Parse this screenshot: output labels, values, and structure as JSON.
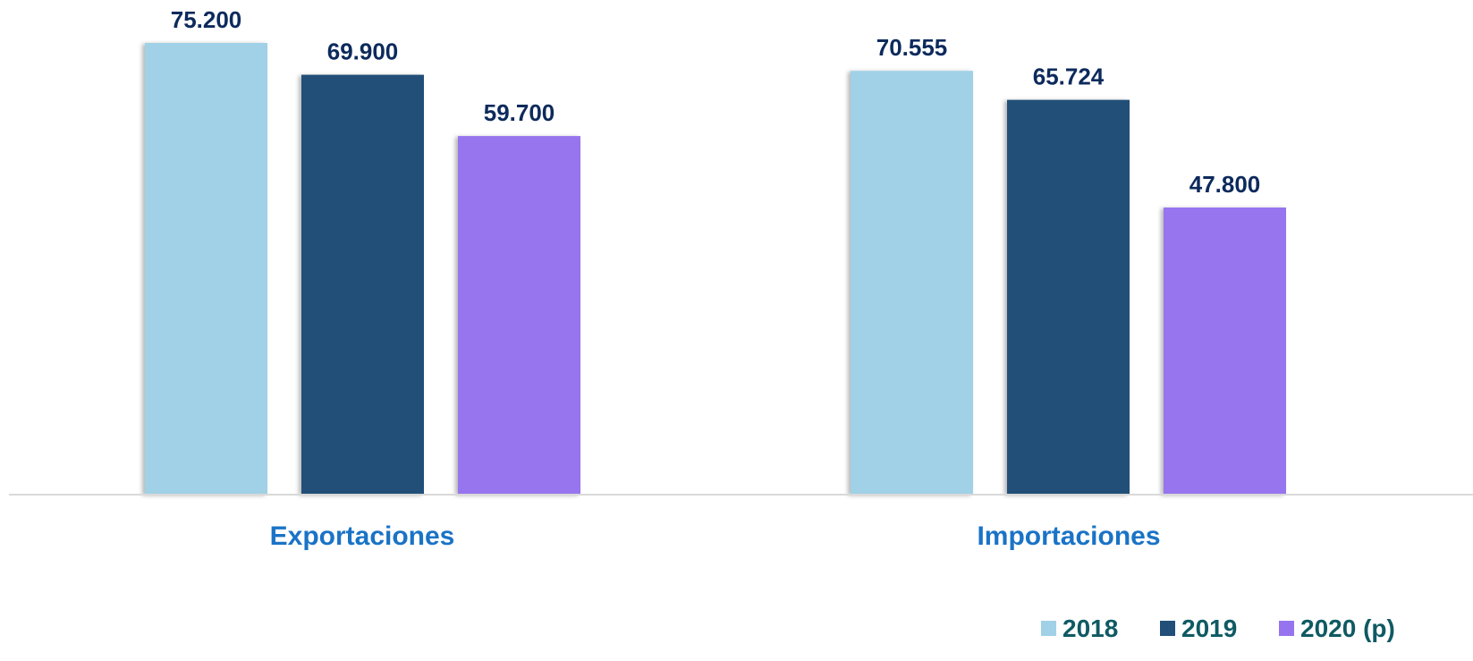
{
  "chart_data": {
    "type": "bar",
    "title": "",
    "xlabel": "",
    "ylabel": "",
    "categories": [
      "Exportaciones",
      "Importaciones"
    ],
    "series": [
      {
        "name": "2018",
        "values": [
          75200,
          70555
        ],
        "labels": [
          "75.200",
          "70.555"
        ],
        "color": "#a1d1e6"
      },
      {
        "name": "2019",
        "values": [
          69900,
          65724
        ],
        "labels": [
          "69.900",
          "65.724"
        ],
        "color": "#214f78"
      },
      {
        "name": "2020 (p)",
        "values": [
          59700,
          47800
        ],
        "labels": [
          "59.700",
          "47.800"
        ],
        "color": "#9674ef"
      }
    ],
    "ylim": [
      0,
      75200
    ],
    "grid": false,
    "legend_position": "bottom-right",
    "colors": {
      "data_label": "#0d2a5c",
      "category_label": "#1a73c6",
      "legend_label": "#0f5a63",
      "baseline": "#d9d9d9"
    }
  }
}
